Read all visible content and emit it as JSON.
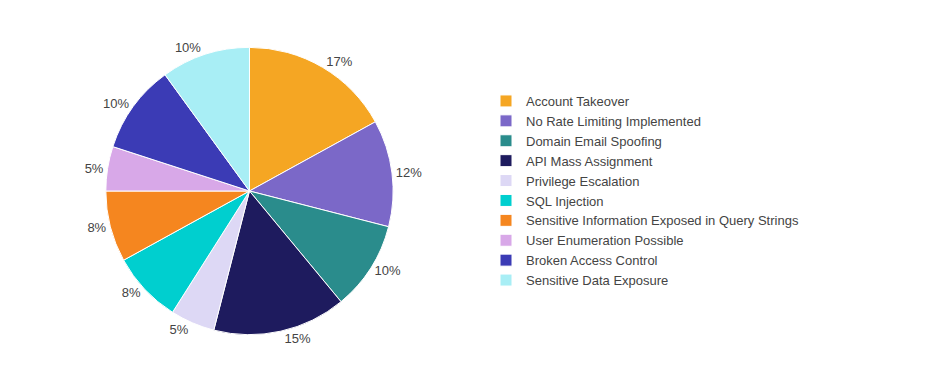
{
  "chart_data": {
    "type": "pie",
    "categories": [
      "Account Takeover",
      "No Rate Limiting Implemented",
      "Domain Email Spoofing",
      "API Mass Assignment",
      "Privilege Escalation",
      "SQL Injection",
      "Sensitive Information Exposed in Query Strings",
      "User Enumeration Possible",
      "Broken Access Control",
      "Sensitive Data Exposure"
    ],
    "values": [
      17,
      12,
      10,
      15,
      5,
      8,
      8,
      5,
      10,
      10
    ],
    "value_labels": [
      "17%",
      "12%",
      "10%",
      "15%",
      "5%",
      "8%",
      "8%",
      "5%",
      "10%",
      "10%"
    ],
    "colors": [
      "#F5A623",
      "#7B68C8",
      "#2A8C8C",
      "#1E1B5E",
      "#DDD8F5",
      "#00CFCF",
      "#F5861F",
      "#D8A8E8",
      "#3B3BB5",
      "#A8EEF5"
    ],
    "data_labels": true,
    "legend": "right"
  }
}
